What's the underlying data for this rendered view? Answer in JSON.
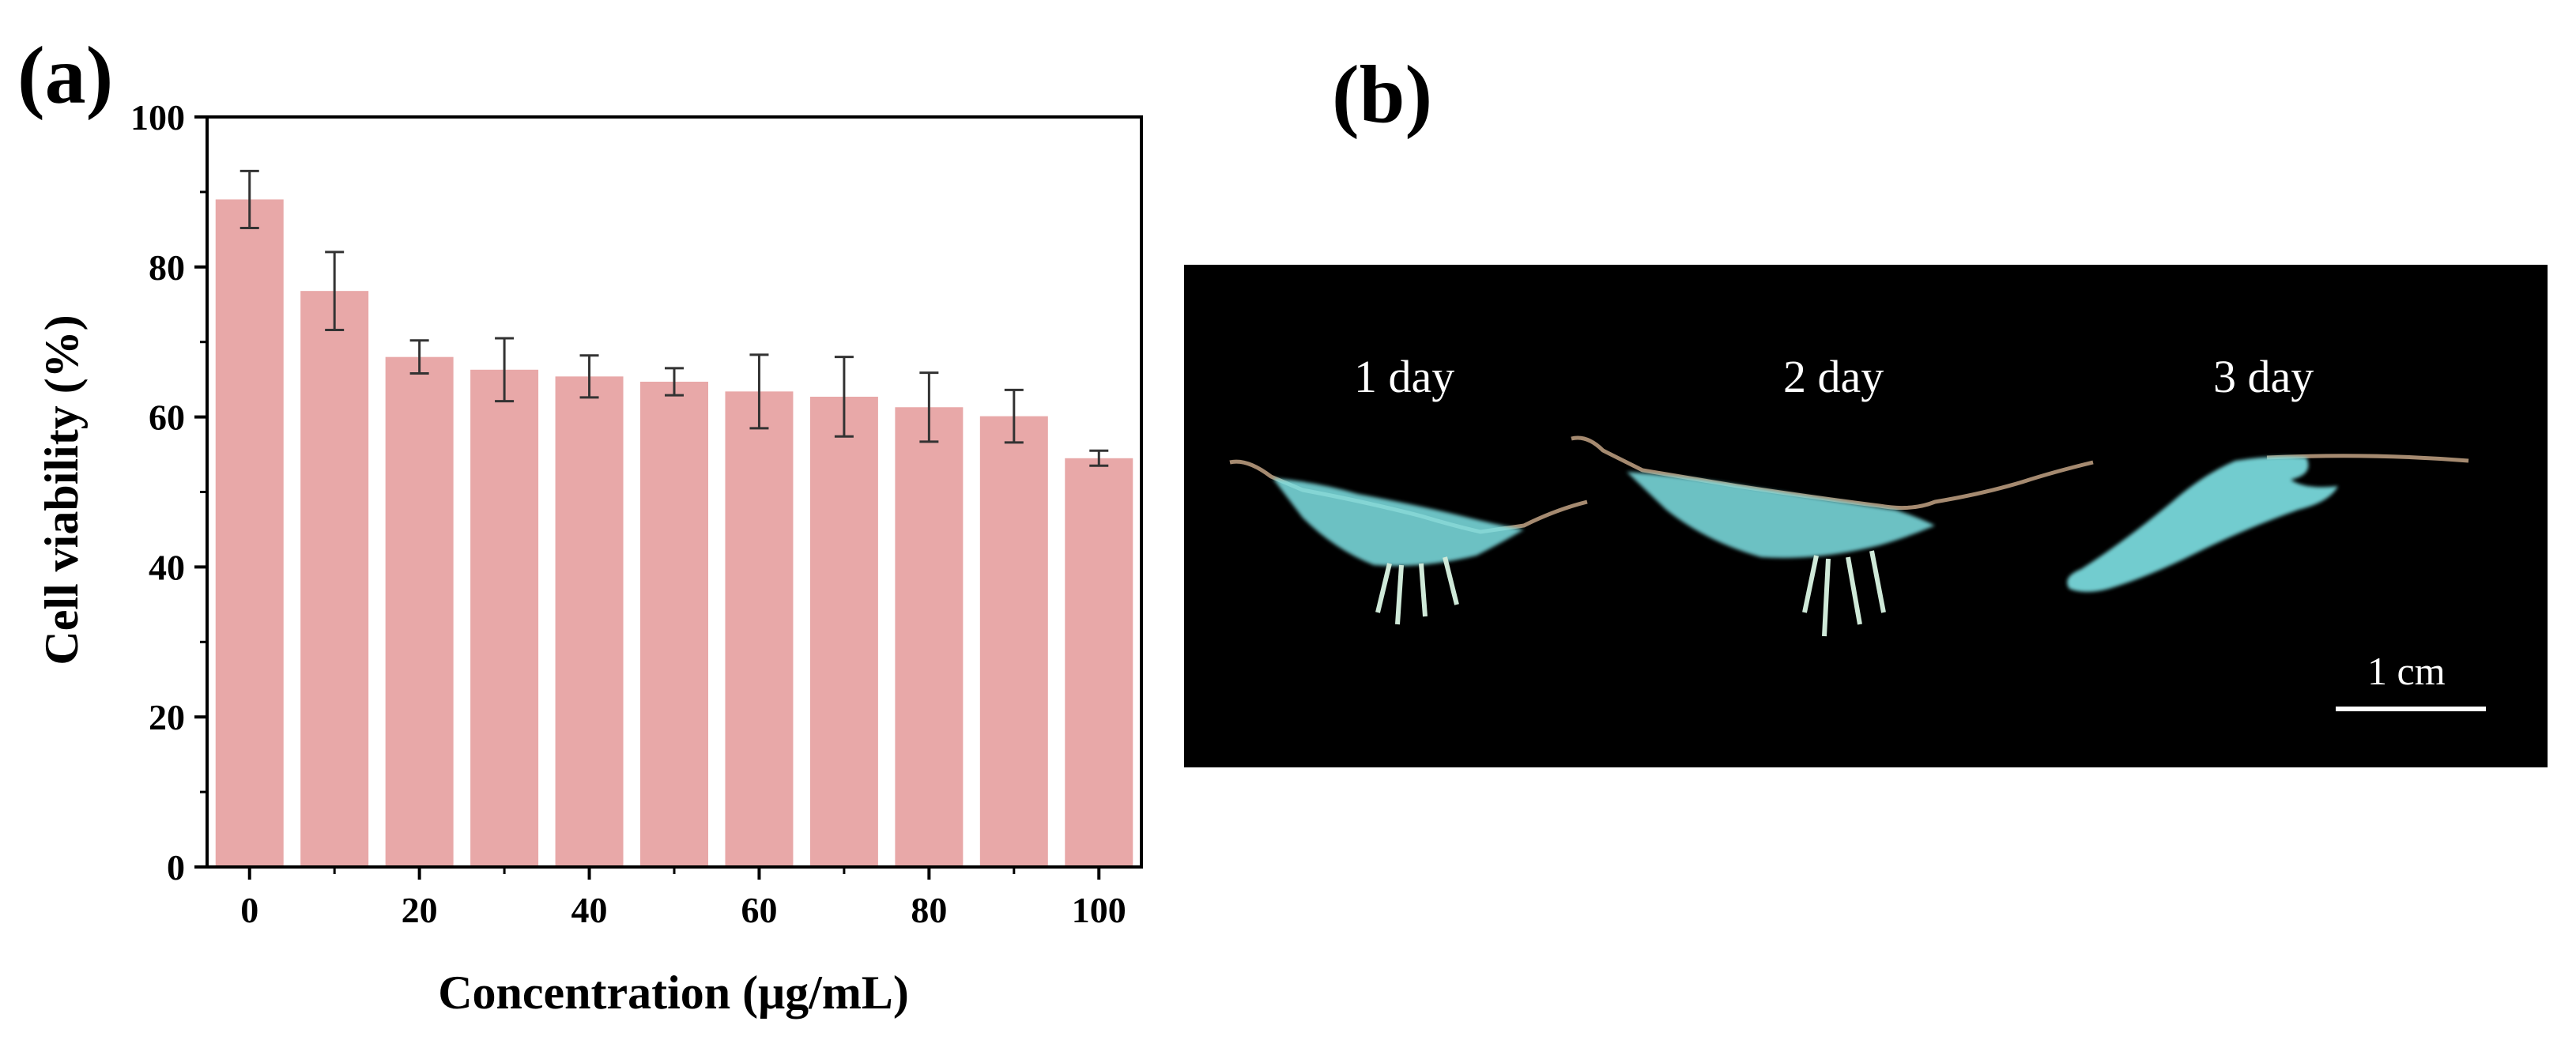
{
  "panel_labels": {
    "a": "(a)",
    "b": "(b)"
  },
  "chart_data": {
    "type": "bar",
    "title": "",
    "xlabel": "Concentration (μg/mL)",
    "ylabel": "Cell viability (%)",
    "categories": [
      0,
      10,
      20,
      30,
      40,
      50,
      60,
      70,
      80,
      90,
      100
    ],
    "values": [
      89.0,
      76.8,
      68.0,
      66.3,
      65.4,
      64.7,
      63.4,
      62.7,
      61.3,
      60.1,
      54.5
    ],
    "errors": [
      3.8,
      5.2,
      2.2,
      4.2,
      2.8,
      1.8,
      4.9,
      5.3,
      4.6,
      3.5,
      1.0
    ],
    "xlim": [
      -5,
      105
    ],
    "ylim": [
      0,
      100
    ],
    "xticks": [
      0,
      20,
      40,
      60,
      80,
      100
    ],
    "yticks": [
      0,
      20,
      40,
      60,
      80,
      100
    ],
    "bar_color": "#e8a8a8",
    "grid": false
  },
  "photo": {
    "days": [
      "1 day",
      "2 day",
      "3 day"
    ],
    "scale_bar": "1 cm",
    "specimen_color": "#7fe3e6",
    "background_color": "#000000"
  }
}
